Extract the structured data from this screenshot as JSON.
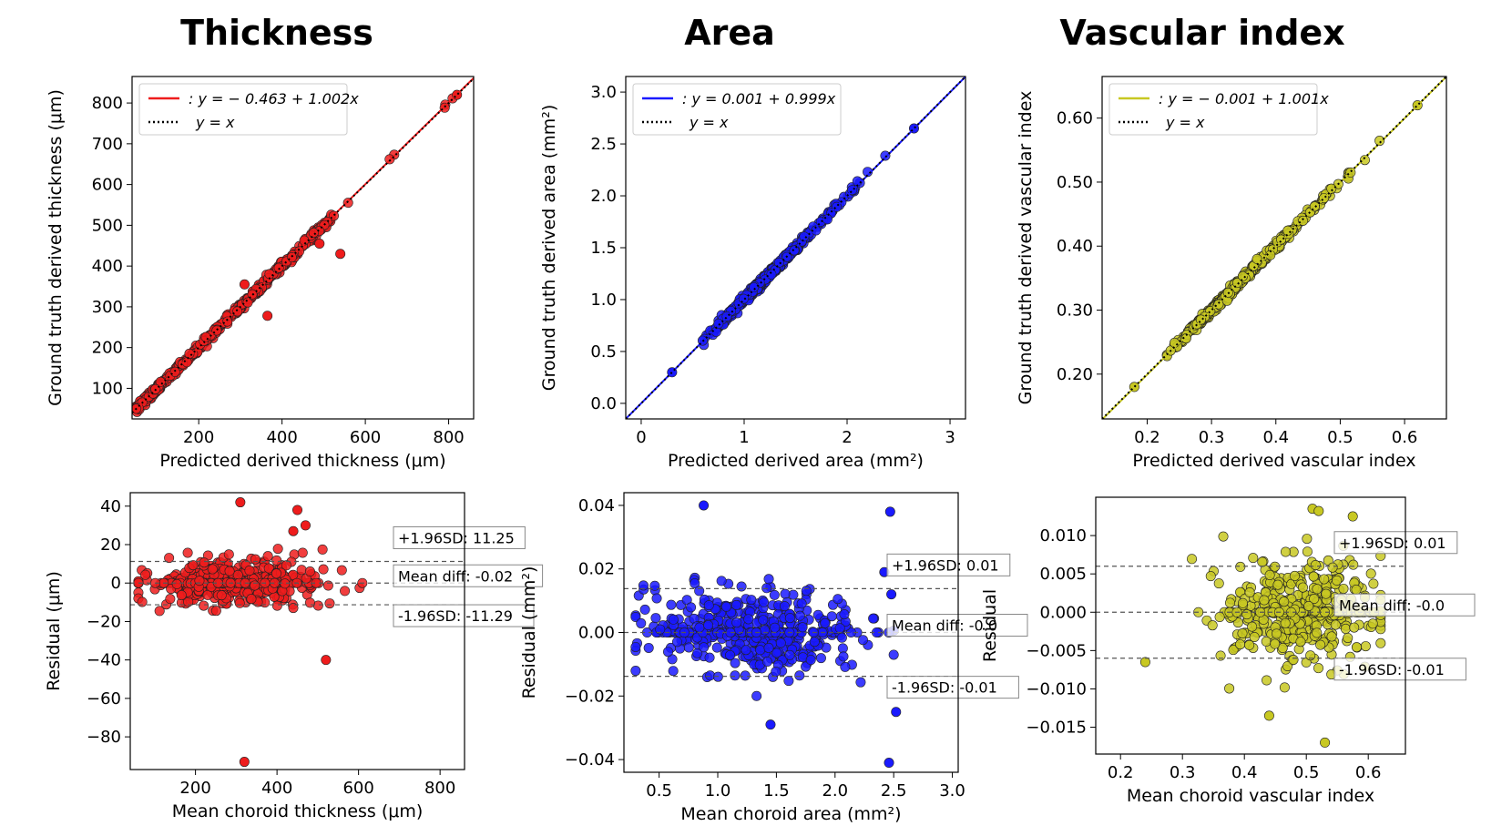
{
  "titles": [
    "Thickness",
    "Area",
    "Vascular index"
  ],
  "chart_data": [
    {
      "id": "thickness-scatter",
      "type": "scatter",
      "xlabel": "Predicted derived thickness (μm)",
      "ylabel": "Ground truth derived thickness (μm)",
      "xlim": [
        40,
        860
      ],
      "ylim": [
        25,
        865
      ],
      "xticks": [
        200,
        400,
        600,
        800
      ],
      "yticks": [
        100,
        200,
        300,
        400,
        500,
        600,
        700,
        800
      ],
      "color": "#ee1c1c",
      "fit": {
        "intercept": -0.463,
        "slope": 1.002
      },
      "legend": [
        ": y = − 0.463 + 1.002x",
        "y = x"
      ],
      "outliers": [
        [
          365,
          278
        ],
        [
          310,
          355
        ],
        [
          490,
          455
        ],
        [
          540,
          430
        ]
      ],
      "range": [
        50,
        820
      ]
    },
    {
      "id": "area-scatter",
      "type": "scatter",
      "xlabel": "Predicted derived area (mm²)",
      "ylabel": "Ground truth derived area (mm²)",
      "xlim": [
        -0.15,
        3.15
      ],
      "ylim": [
        -0.15,
        3.15
      ],
      "xticks": [
        0,
        1,
        2,
        3
      ],
      "yticks": [
        0.0,
        0.5,
        1.0,
        1.5,
        2.0,
        2.5,
        3.0
      ],
      "color": "#1a1aff",
      "fit": {
        "intercept": 0.001,
        "slope": 0.999
      },
      "legend": [
        ": y = 0.001 + 0.999x",
        "y = x"
      ],
      "outliers": [],
      "range": [
        0.3,
        2.65
      ]
    },
    {
      "id": "vi-scatter",
      "type": "scatter",
      "xlabel": "Predicted derived vascular index",
      "ylabel": "Ground truth derived vascular index",
      "xlim": [
        0.13,
        0.665
      ],
      "ylim": [
        0.13,
        0.665
      ],
      "xticks": [
        0.2,
        0.3,
        0.4,
        0.5,
        0.6
      ],
      "yticks": [
        0.2,
        0.3,
        0.4,
        0.5,
        0.6
      ],
      "color": "#c8c822",
      "fit": {
        "intercept": -0.001,
        "slope": 1.001
      },
      "legend": [
        ": y = − 0.001 + 1.001x",
        "y = x"
      ],
      "outliers": [],
      "range": [
        0.18,
        0.62
      ]
    },
    {
      "id": "thickness-bland-altman",
      "type": "scatter",
      "xlabel": "Mean choroid thickness (μm)",
      "ylabel": "Residual (μm)",
      "xlim": [
        40,
        860
      ],
      "ylim": [
        -97,
        47
      ],
      "xticks": [
        200,
        400,
        600,
        800
      ],
      "yticks": [
        40,
        20,
        0,
        -20,
        -40,
        -60,
        -80
      ],
      "color": "#ee1c1c",
      "mean_diff": -0.02,
      "upper": 11.25,
      "lower": -11.29,
      "labels": [
        "+1.96SD: 11.25",
        "Mean diff: -0.02",
        "-1.96SD: -11.29"
      ],
      "range": [
        60,
        690
      ],
      "center": 290,
      "spread": 110,
      "sd": 6,
      "outliers": [
        [
          320,
          -93
        ],
        [
          520,
          -40
        ],
        [
          310,
          42
        ],
        [
          450,
          38
        ],
        [
          470,
          30
        ],
        [
          440,
          27
        ]
      ]
    },
    {
      "id": "area-bland-altman",
      "type": "scatter",
      "xlabel": "Mean choroid area (mm²)",
      "ylabel": "Residual (mm²)",
      "xlim": [
        0.2,
        3.05
      ],
      "ylim": [
        -0.044,
        0.044
      ],
      "xticks": [
        0.5,
        1.0,
        1.5,
        2.0,
        2.5,
        3.0
      ],
      "yticks": [
        0.04,
        0.02,
        0.0,
        -0.02,
        -0.04
      ],
      "color": "#1a1aff",
      "mean_diff": 0.0,
      "upper": 0.0138,
      "lower": -0.0138,
      "labels": [
        "+1.96SD: 0.01",
        "Mean diff: -0.0",
        "-1.96SD: -0.01"
      ],
      "range": [
        0.3,
        2.5
      ],
      "center": 1.3,
      "spread": 0.45,
      "sd": 0.007,
      "outliers": [
        [
          0.88,
          0.04
        ],
        [
          2.47,
          0.038
        ],
        [
          2.46,
          -0.041
        ],
        [
          2.52,
          -0.025
        ],
        [
          1.45,
          -0.029
        ],
        [
          2.42,
          0.019
        ],
        [
          2.48,
          0.012
        ]
      ]
    },
    {
      "id": "vi-bland-altman",
      "type": "scatter",
      "xlabel": "Mean choroid vascular index",
      "ylabel": "Residual",
      "xlim": [
        0.16,
        0.66
      ],
      "ylim": [
        -0.0185,
        0.015
      ],
      "xticks": [
        0.2,
        0.3,
        0.4,
        0.5,
        0.6
      ],
      "yticks": [
        0.01,
        0.005,
        0.0,
        -0.005,
        -0.01,
        -0.015
      ],
      "ytick_labels": [
        "0.010",
        "0.005",
        "0.000",
        "−0.005",
        "−0.010",
        "−0.015"
      ],
      "color": "#c8c822",
      "mean_diff": 0.0,
      "upper": 0.006,
      "lower": -0.006,
      "labels": [
        "+1.96SD: 0.01",
        "Mean diff: -0.0",
        "-1.96SD: -0.01"
      ],
      "range": [
        0.18,
        0.62
      ],
      "center": 0.49,
      "spread": 0.06,
      "sd": 0.0035,
      "outliers": [
        [
          0.53,
          -0.017
        ],
        [
          0.51,
          0.0135
        ],
        [
          0.52,
          0.0132
        ],
        [
          0.44,
          -0.0135
        ],
        [
          0.575,
          0.0125
        ],
        [
          0.24,
          -0.0065
        ]
      ]
    }
  ]
}
